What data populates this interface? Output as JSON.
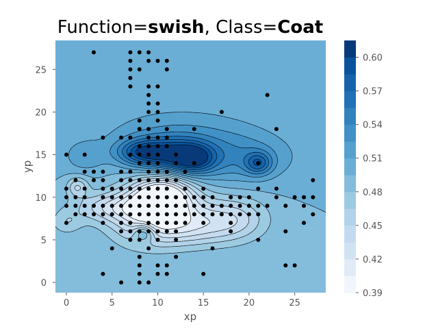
{
  "title": {
    "prefix": "Function=",
    "function": "swish",
    "middle": ", Class=",
    "class": "Coat"
  },
  "chart_data": {
    "type": "heatmap",
    "subtype": "filled-contour-with-scatter",
    "xlabel": "xp",
    "ylabel": "yp",
    "xlim": [
      -1.2,
      28.4
    ],
    "ylim": [
      28.4,
      -1.2
    ],
    "y_inverted": true,
    "x_ticks": [
      0,
      5,
      10,
      15,
      20,
      25
    ],
    "y_ticks": [
      0,
      5,
      10,
      15,
      20,
      25
    ],
    "grid": false,
    "background_level": 0.495,
    "colorbar": {
      "min": 0.39,
      "max": 0.615,
      "ticks": [
        0.39,
        0.42,
        0.45,
        0.48,
        0.51,
        0.54,
        0.57,
        0.6
      ],
      "tick_labels": [
        "0.39",
        "0.42",
        "0.45",
        "0.48",
        "0.51",
        "0.54",
        "0.57",
        "0.60"
      ],
      "levels": [
        0.39,
        0.405,
        0.42,
        0.435,
        0.45,
        0.465,
        0.48,
        0.495,
        0.51,
        0.525,
        0.54,
        0.555,
        0.57,
        0.585,
        0.6,
        0.615
      ],
      "colors": [
        "#f1f6fc",
        "#e0ebf7",
        "#d1e3f3",
        "#c4dbef",
        "#b2d3e9",
        "#9ccae1",
        "#84bcdb",
        "#6aaed6",
        "#56a0ce",
        "#4191c6",
        "#3182bd",
        "#2171b5",
        "#1663aa",
        "#08539b",
        "#083a7a"
      ]
    },
    "features": [
      {
        "x": 10.5,
        "y": 10.3,
        "value": 0.392,
        "sx": 2.3,
        "sy": 1.6
      },
      {
        "x": 8.5,
        "y": 7.8,
        "value": 0.44,
        "sx": 2.8,
        "sy": 2.4
      },
      {
        "x": 12.5,
        "y": 7.6,
        "value": 0.45,
        "sx": 3.3,
        "sy": 2.0
      },
      {
        "x": 18.5,
        "y": 7.5,
        "value": 0.45,
        "sx": 2.5,
        "sy": 1.8
      },
      {
        "x": 13.5,
        "y": 6.3,
        "value": 0.465,
        "sx": 3.5,
        "sy": 1.5
      },
      {
        "x": 4.5,
        "y": 8.8,
        "value": 0.45,
        "sx": 2.8,
        "sy": 1.2
      },
      {
        "x": 1.2,
        "y": 11.2,
        "value": 0.45,
        "sx": 0.8,
        "sy": 0.8
      },
      {
        "x": 8.5,
        "y": 5.8,
        "value": 0.55,
        "sx": 0.8,
        "sy": 0.7
      },
      {
        "x": 11.2,
        "y": 15.0,
        "value": 0.575,
        "sx": 2.6,
        "sy": 1.4
      },
      {
        "x": 14.0,
        "y": 14.5,
        "value": 0.565,
        "sx": 1.6,
        "sy": 1.2
      },
      {
        "x": 8.0,
        "y": 15.3,
        "value": 0.555,
        "sx": 1.8,
        "sy": 1.0
      },
      {
        "x": 21.0,
        "y": 14.0,
        "value": 0.555,
        "sx": 1.0,
        "sy": 0.9
      },
      {
        "x": 19.0,
        "y": 14.5,
        "value": 0.53,
        "sx": 4.0,
        "sy": 2.0
      },
      {
        "x": 12.5,
        "y": 17.0,
        "value": 0.525,
        "sx": 6.0,
        "sy": 2.5
      },
      {
        "x": 2.0,
        "y": 14.8,
        "value": 0.52,
        "sx": 1.5,
        "sy": 1.2
      },
      {
        "x": 0.0,
        "y": 7.0,
        "value": 0.47,
        "sx": 1.2,
        "sy": 1.0
      }
    ],
    "points": [
      [
        6,
        0
      ],
      [
        8,
        0
      ],
      [
        9,
        0
      ],
      [
        4,
        1
      ],
      [
        8,
        1
      ],
      [
        10,
        1
      ],
      [
        11,
        1
      ],
      [
        15,
        1
      ],
      [
        8,
        2
      ],
      [
        10,
        2
      ],
      [
        11,
        2
      ],
      [
        24,
        2
      ],
      [
        25,
        2
      ],
      [
        8,
        3
      ],
      [
        12,
        3
      ],
      [
        5,
        4
      ],
      [
        9,
        4
      ],
      [
        16,
        4
      ],
      [
        7,
        5
      ],
      [
        8,
        5
      ],
      [
        10,
        5
      ],
      [
        12,
        5
      ],
      [
        21,
        5
      ],
      [
        6,
        6
      ],
      [
        7,
        6
      ],
      [
        8,
        6
      ],
      [
        9,
        6
      ],
      [
        10,
        6
      ],
      [
        11,
        6
      ],
      [
        12,
        6
      ],
      [
        18,
        6
      ],
      [
        24,
        6
      ],
      [
        6,
        7
      ],
      [
        7,
        7
      ],
      [
        9,
        7
      ],
      [
        10,
        7
      ],
      [
        11,
        7
      ],
      [
        13,
        7
      ],
      [
        15,
        7
      ],
      [
        0,
        7
      ],
      [
        4,
        7
      ],
      [
        12,
        7
      ],
      [
        18,
        7
      ],
      [
        26,
        7
      ],
      [
        1,
        8
      ],
      [
        2,
        8
      ],
      [
        3,
        8
      ],
      [
        4,
        8
      ],
      [
        5,
        8
      ],
      [
        6,
        8
      ],
      [
        7,
        8
      ],
      [
        8,
        8
      ],
      [
        9,
        8
      ],
      [
        10,
        8
      ],
      [
        11,
        8
      ],
      [
        12,
        8
      ],
      [
        13,
        8
      ],
      [
        14,
        8
      ],
      [
        15,
        8
      ],
      [
        16,
        8
      ],
      [
        17,
        8
      ],
      [
        18,
        8
      ],
      [
        19,
        8
      ],
      [
        20,
        8
      ],
      [
        21,
        8
      ],
      [
        27,
        8
      ],
      [
        0,
        9
      ],
      [
        1,
        9
      ],
      [
        2,
        9
      ],
      [
        3,
        9
      ],
      [
        4,
        9
      ],
      [
        5,
        9
      ],
      [
        6,
        9
      ],
      [
        7,
        9
      ],
      [
        8,
        9
      ],
      [
        9,
        9
      ],
      [
        10,
        9
      ],
      [
        11,
        9
      ],
      [
        12,
        9
      ],
      [
        13,
        9
      ],
      [
        14,
        9
      ],
      [
        15,
        9
      ],
      [
        16,
        9
      ],
      [
        17,
        9
      ],
      [
        18,
        9
      ],
      [
        19,
        9
      ],
      [
        20,
        9
      ],
      [
        21,
        9
      ],
      [
        22,
        9
      ],
      [
        24,
        9
      ],
      [
        26,
        9
      ],
      [
        0,
        10
      ],
      [
        1,
        10
      ],
      [
        2,
        10
      ],
      [
        4,
        10
      ],
      [
        5,
        10
      ],
      [
        6,
        10
      ],
      [
        7,
        10
      ],
      [
        8,
        10
      ],
      [
        9,
        10
      ],
      [
        10,
        10
      ],
      [
        11,
        10
      ],
      [
        12,
        10
      ],
      [
        13,
        10
      ],
      [
        14,
        10
      ],
      [
        15,
        10
      ],
      [
        16,
        10
      ],
      [
        18,
        10
      ],
      [
        19,
        10
      ],
      [
        20,
        10
      ],
      [
        23,
        10
      ],
      [
        25,
        10
      ],
      [
        26,
        10
      ],
      [
        27,
        10
      ],
      [
        0,
        11
      ],
      [
        2,
        11
      ],
      [
        4,
        11
      ],
      [
        5,
        11
      ],
      [
        6,
        11
      ],
      [
        7,
        11
      ],
      [
        8,
        11
      ],
      [
        9,
        11
      ],
      [
        10,
        11
      ],
      [
        11,
        11
      ],
      [
        13,
        11
      ],
      [
        15,
        11
      ],
      [
        21,
        11
      ],
      [
        23,
        11
      ],
      [
        1,
        12
      ],
      [
        3,
        12
      ],
      [
        4,
        12
      ],
      [
        6,
        12
      ],
      [
        7,
        12
      ],
      [
        8,
        12
      ],
      [
        9,
        12
      ],
      [
        10,
        12
      ],
      [
        11,
        12
      ],
      [
        12,
        12
      ],
      [
        27,
        12
      ],
      [
        2,
        13
      ],
      [
        3,
        13
      ],
      [
        4,
        13
      ],
      [
        6,
        13
      ],
      [
        7,
        13
      ],
      [
        9,
        13
      ],
      [
        10,
        13
      ],
      [
        11,
        13
      ],
      [
        13,
        13
      ],
      [
        8,
        14
      ],
      [
        9,
        14
      ],
      [
        10,
        14
      ],
      [
        12,
        14
      ],
      [
        14,
        14
      ],
      [
        21,
        14
      ],
      [
        0,
        15
      ],
      [
        2,
        15
      ],
      [
        7,
        15
      ],
      [
        8,
        15
      ],
      [
        9,
        15
      ],
      [
        10,
        15
      ],
      [
        12,
        15
      ],
      [
        8,
        16
      ],
      [
        9,
        16
      ],
      [
        10,
        16
      ],
      [
        11,
        16
      ],
      [
        4,
        17
      ],
      [
        6,
        17
      ],
      [
        7,
        17
      ],
      [
        9,
        17
      ],
      [
        10,
        17
      ],
      [
        11,
        17
      ],
      [
        8,
        18
      ],
      [
        9,
        18
      ],
      [
        11,
        18
      ],
      [
        14,
        18
      ],
      [
        23,
        18
      ],
      [
        8,
        19
      ],
      [
        10,
        19
      ],
      [
        9,
        20
      ],
      [
        10,
        20
      ],
      [
        17,
        20
      ],
      [
        9,
        21
      ],
      [
        10,
        21
      ],
      [
        9,
        22
      ],
      [
        22,
        22
      ],
      [
        7,
        23
      ],
      [
        9,
        23
      ],
      [
        10,
        23
      ],
      [
        7,
        24
      ],
      [
        7,
        25
      ],
      [
        8,
        25
      ],
      [
        11,
        25
      ],
      [
        7,
        26
      ],
      [
        9,
        26
      ],
      [
        10,
        26
      ],
      [
        11,
        26
      ],
      [
        3,
        27
      ],
      [
        7,
        27
      ],
      [
        8,
        27
      ],
      [
        9,
        27
      ]
    ]
  }
}
